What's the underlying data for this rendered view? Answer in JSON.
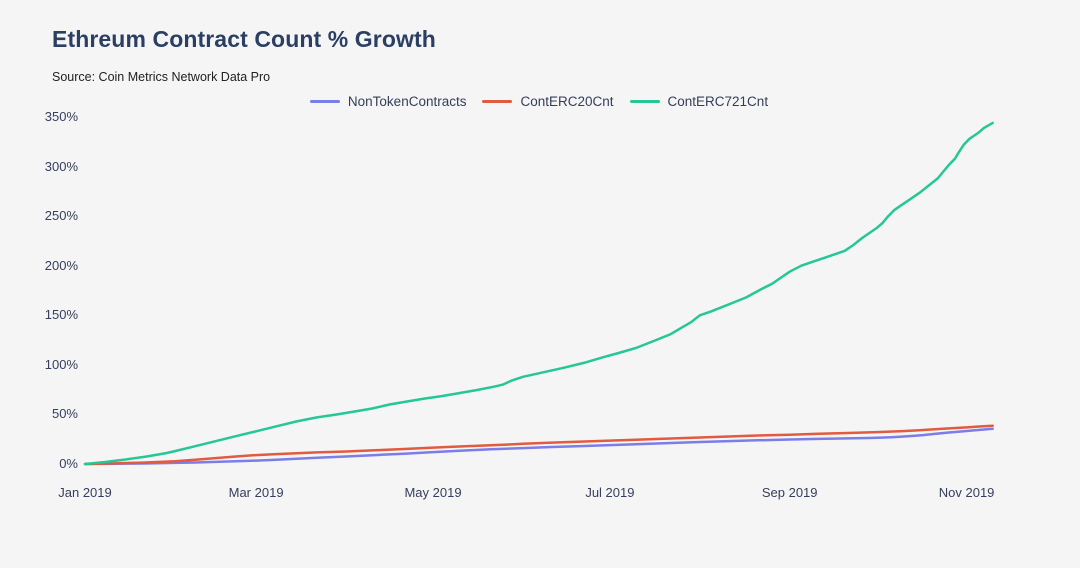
{
  "header": {
    "title": "Ethreum Contract Count % Growth",
    "source": "Source: Coin Metrics Network Data Pro"
  },
  "colors": {
    "background": "#f5f5f6",
    "title_text": "#2b3f63",
    "axis_text": "#353f5b",
    "source_text": "#202124",
    "non_token_contracts": "#7b7de9",
    "cont_erc20": "#e25a3f",
    "cont_erc721": "#24c795"
  },
  "chart_data": {
    "type": "line",
    "title": "Ethreum Contract Count % Growth",
    "subtitle": "Source: Coin Metrics Network Data Pro",
    "xlabel": "",
    "ylabel": "",
    "x_unit": "days since Jan 1, 2019",
    "y_unit": "percent growth",
    "xlim": [
      0,
      313
    ],
    "ylim": [
      0,
      350
    ],
    "grid": false,
    "legend_position": "top-center",
    "x_axis": {
      "ticks": [
        {
          "label": "Jan 2019",
          "day": 0
        },
        {
          "label": "Mar 2019",
          "day": 59
        },
        {
          "label": "May 2019",
          "day": 120
        },
        {
          "label": "Jul 2019",
          "day": 181
        },
        {
          "label": "Sep 2019",
          "day": 243
        },
        {
          "label": "Nov 2019",
          "day": 304
        }
      ]
    },
    "y_axis": {
      "ticks": [
        {
          "label": "0%",
          "value": 0
        },
        {
          "label": "50%",
          "value": 50
        },
        {
          "label": "100%",
          "value": 100
        },
        {
          "label": "150%",
          "value": 150
        },
        {
          "label": "200%",
          "value": 200
        },
        {
          "label": "250%",
          "value": 250
        },
        {
          "label": "300%",
          "value": 300
        },
        {
          "label": "350%",
          "value": 350
        }
      ]
    },
    "series": [
      {
        "name": "NonTokenContracts",
        "color": "#7b7de9",
        "end_value_pct": 35.5,
        "points": [
          [
            0,
            0
          ],
          [
            10,
            0.2
          ],
          [
            20,
            0.5
          ],
          [
            31,
            1.1
          ],
          [
            38,
            1.5
          ],
          [
            45,
            2.1
          ],
          [
            52,
            2.7
          ],
          [
            59,
            3.4
          ],
          [
            66,
            4.3
          ],
          [
            73,
            5.3
          ],
          [
            80,
            6.3
          ],
          [
            90,
            7.6
          ],
          [
            100,
            9
          ],
          [
            110,
            10.4
          ],
          [
            120,
            12
          ],
          [
            130,
            13.5
          ],
          [
            140,
            14.8
          ],
          [
            151,
            16
          ],
          [
            161,
            17.1
          ],
          [
            171,
            18.1
          ],
          [
            181,
            19.1
          ],
          [
            191,
            20.1
          ],
          [
            202,
            21.2
          ],
          [
            212,
            22.2
          ],
          [
            222,
            23.1
          ],
          [
            232,
            23.9
          ],
          [
            243,
            24.7
          ],
          [
            253,
            25.3
          ],
          [
            263,
            25.8
          ],
          [
            270,
            26.2
          ],
          [
            276,
            26.7
          ],
          [
            281,
            27.4
          ],
          [
            285,
            28.2
          ],
          [
            289,
            29.2
          ],
          [
            293,
            30.4
          ],
          [
            297,
            31.5
          ],
          [
            301,
            32.6
          ],
          [
            305,
            33.6
          ],
          [
            309,
            34.5
          ],
          [
            313,
            35.5
          ]
        ]
      },
      {
        "name": "ContERC20Cnt",
        "color": "#e25a3f",
        "end_value_pct": 38.6,
        "points": [
          [
            0,
            0
          ],
          [
            10,
            0.6
          ],
          [
            20,
            1.4
          ],
          [
            31,
            2.8
          ],
          [
            38,
            4.3
          ],
          [
            45,
            6
          ],
          [
            52,
            7.6
          ],
          [
            59,
            9
          ],
          [
            66,
            10
          ],
          [
            73,
            10.9
          ],
          [
            80,
            11.7
          ],
          [
            90,
            12.6
          ],
          [
            100,
            13.8
          ],
          [
            110,
            15.1
          ],
          [
            120,
            16.5
          ],
          [
            130,
            17.8
          ],
          [
            140,
            19
          ],
          [
            147,
            19.8
          ],
          [
            151,
            20.4
          ],
          [
            161,
            21.6
          ],
          [
            171,
            22.6
          ],
          [
            181,
            23.6
          ],
          [
            191,
            24.6
          ],
          [
            202,
            25.7
          ],
          [
            212,
            26.7
          ],
          [
            222,
            27.7
          ],
          [
            232,
            28.7
          ],
          [
            243,
            29.6
          ],
          [
            253,
            30.5
          ],
          [
            263,
            31.3
          ],
          [
            273,
            32.2
          ],
          [
            281,
            33
          ],
          [
            287,
            33.9
          ],
          [
            293,
            35
          ],
          [
            298,
            35.9
          ],
          [
            304,
            36.9
          ],
          [
            309,
            37.9
          ],
          [
            313,
            38.6
          ]
        ]
      },
      {
        "name": "ContERC721Cnt",
        "color": "#24c795",
        "end_value_pct": 344,
        "points": [
          [
            0,
            0
          ],
          [
            7,
            2
          ],
          [
            14,
            4.5
          ],
          [
            21,
            7.5
          ],
          [
            28,
            11
          ],
          [
            31,
            13
          ],
          [
            38,
            18
          ],
          [
            45,
            23
          ],
          [
            52,
            28
          ],
          [
            59,
            33
          ],
          [
            66,
            38
          ],
          [
            73,
            43
          ],
          [
            80,
            47
          ],
          [
            87,
            50
          ],
          [
            93,
            53
          ],
          [
            99,
            56
          ],
          [
            105,
            60
          ],
          [
            111,
            63
          ],
          [
            117,
            66
          ],
          [
            123,
            68.5
          ],
          [
            129,
            71.5
          ],
          [
            135,
            74.5
          ],
          [
            141,
            78
          ],
          [
            144,
            80
          ],
          [
            147,
            84
          ],
          [
            151,
            88
          ],
          [
            158,
            92.5
          ],
          [
            165,
            97
          ],
          [
            172,
            102
          ],
          [
            179,
            108
          ],
          [
            184,
            112
          ],
          [
            190,
            117
          ],
          [
            196,
            124
          ],
          [
            202,
            131
          ],
          [
            206,
            138
          ],
          [
            209,
            143
          ],
          [
            212,
            150
          ],
          [
            216,
            154
          ],
          [
            222,
            161
          ],
          [
            228,
            168
          ],
          [
            233,
            176
          ],
          [
            237,
            182
          ],
          [
            240,
            188
          ],
          [
            243,
            194
          ],
          [
            247,
            200
          ],
          [
            251,
            204
          ],
          [
            255,
            208
          ],
          [
            259,
            212
          ],
          [
            262,
            215
          ],
          [
            265,
            221
          ],
          [
            268,
            228
          ],
          [
            271,
            234
          ],
          [
            273,
            238
          ],
          [
            275,
            243
          ],
          [
            277,
            250
          ],
          [
            279,
            256
          ],
          [
            282,
            262
          ],
          [
            285,
            268
          ],
          [
            288,
            274
          ],
          [
            291,
            281
          ],
          [
            294,
            288
          ],
          [
            296,
            295
          ],
          [
            298,
            302
          ],
          [
            300,
            308
          ],
          [
            301,
            313
          ],
          [
            303,
            322
          ],
          [
            305,
            328
          ],
          [
            308,
            334
          ],
          [
            310,
            339
          ],
          [
            313,
            344
          ]
        ]
      }
    ]
  }
}
